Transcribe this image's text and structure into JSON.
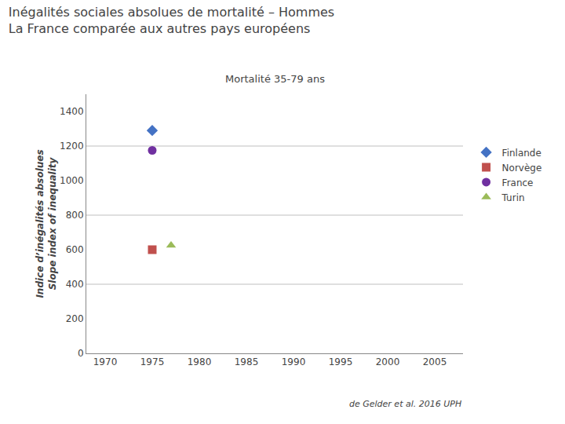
{
  "chart_data": {
    "type": "scatter",
    "title": "Inégalités sociales absolues de mortalité – Hommes\nLa France comparée aux autres pays européens",
    "subtitle": "Mortalité 35-79 ans",
    "y_label": "Indice d’inégalités absolues\nSlope index of inequality",
    "annotations": [
      "de Gelder et al. 2016 UPH"
    ],
    "series": [
      {
        "name": "Finlande",
        "x": [
          1975
        ],
        "values": [
          1290
        ],
        "color": "#4472C4",
        "marker": "diamond"
      },
      {
        "name": "Norvège",
        "x": [
          1975
        ],
        "values": [
          600
        ],
        "color": "#C0504D",
        "marker": "square"
      },
      {
        "name": "France",
        "x": [
          1975
        ],
        "values": [
          1175
        ],
        "color": "#7030A0",
        "marker": "circle"
      },
      {
        "name": "Turin",
        "x": [
          1977
        ],
        "values": [
          625
        ],
        "color": "#9BBB59",
        "marker": "triangle"
      }
    ],
    "hlines": [
      400,
      800,
      1200
    ],
    "xlim": [
      1968,
      2008
    ],
    "ylim": [
      0,
      1500
    ],
    "xticks": [
      1970,
      1975,
      1980,
      1985,
      1990,
      1995,
      2000,
      2005
    ],
    "yticks": [
      0,
      200,
      400,
      600,
      800,
      1000,
      1200,
      1400
    ],
    "grid": false,
    "legend": "right"
  }
}
